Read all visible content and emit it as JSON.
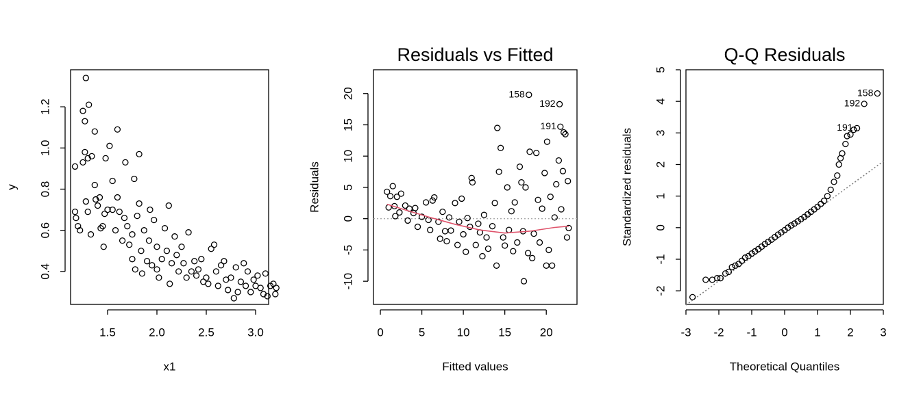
{
  "chart_data": [
    {
      "type": "scatter",
      "xlabel": "x1",
      "ylabel": "y",
      "xlim": [
        1.125,
        3.132
      ],
      "ylim": [
        0.24,
        1.38
      ],
      "xticks": [
        1.5,
        {
          "value": 2,
          "label": "2.0"
        },
        2.5,
        {
          "value": 3,
          "label": "3.0"
        }
      ],
      "yticks": [
        0.4,
        0.6,
        0.8,
        {
          "value": 1,
          "label": "1.0"
        },
        1.2
      ],
      "color": "#000000",
      "x": [
        1.17,
        1.17,
        1.18,
        1.2,
        1.22,
        1.25,
        1.25,
        1.27,
        1.27,
        1.28,
        1.28,
        1.3,
        1.31,
        1.3,
        1.33,
        1.34,
        1.37,
        1.37,
        1.38,
        1.4,
        1.42,
        1.43,
        1.45,
        1.46,
        1.47,
        1.48,
        1.5,
        1.52,
        1.55,
        1.55,
        1.58,
        1.6,
        1.6,
        1.62,
        1.65,
        1.67,
        1.68,
        1.7,
        1.72,
        1.75,
        1.75,
        1.77,
        1.78,
        1.8,
        1.82,
        1.82,
        1.84,
        1.85,
        1.87,
        1.9,
        1.92,
        1.93,
        1.95,
        1.97,
        2.0,
        2.0,
        2.02,
        2.05,
        2.08,
        2.1,
        2.12,
        2.13,
        2.15,
        2.18,
        2.2,
        2.22,
        2.25,
        2.27,
        2.3,
        2.32,
        2.35,
        2.38,
        2.4,
        2.42,
        2.45,
        2.47,
        2.5,
        2.52,
        2.55,
        2.58,
        2.6,
        2.62,
        2.65,
        2.68,
        2.7,
        2.72,
        2.75,
        2.78,
        2.8,
        2.82,
        2.85,
        2.88,
        2.9,
        2.92,
        2.95,
        2.98,
        3.0,
        3.02,
        3.05,
        3.08,
        3.1,
        3.12,
        3.15,
        3.18,
        3.2,
        3.21
      ],
      "y": [
        0.91,
        0.69,
        0.66,
        0.62,
        0.6,
        0.93,
        1.18,
        1.13,
        0.98,
        1.34,
        0.74,
        0.95,
        1.21,
        0.69,
        0.58,
        0.96,
        0.82,
        1.08,
        0.75,
        0.72,
        0.76,
        0.61,
        0.62,
        0.52,
        0.68,
        0.95,
        0.7,
        1.01,
        0.84,
        0.7,
        0.6,
        1.09,
        0.76,
        0.69,
        0.55,
        0.66,
        0.93,
        0.62,
        0.53,
        0.46,
        0.58,
        0.85,
        0.41,
        0.67,
        0.97,
        0.73,
        0.5,
        0.39,
        0.6,
        0.45,
        0.55,
        0.7,
        0.43,
        0.65,
        0.52,
        0.41,
        0.37,
        0.46,
        0.61,
        0.5,
        0.72,
        0.34,
        0.44,
        0.57,
        0.48,
        0.4,
        0.52,
        0.44,
        0.37,
        0.59,
        0.4,
        0.45,
        0.38,
        0.41,
        0.46,
        0.35,
        0.37,
        0.34,
        0.51,
        0.53,
        0.4,
        0.33,
        0.43,
        0.45,
        0.36,
        0.31,
        0.37,
        0.27,
        0.42,
        0.3,
        0.35,
        0.44,
        0.33,
        0.4,
        0.3,
        0.36,
        0.33,
        0.38,
        0.32,
        0.29,
        0.39,
        0.28,
        0.33,
        0.34,
        0.29,
        0.32
      ]
    },
    {
      "type": "scatter",
      "title": "Residuals vs Fitted",
      "xlabel": "Fitted values",
      "ylabel": "Residuals",
      "xlim": [
        -0.83,
        23.7
      ],
      "ylim": [
        -13.7,
        23.8
      ],
      "xticks": [
        0,
        5,
        10,
        15,
        20
      ],
      "yticks": [
        -10,
        -5,
        0,
        5,
        10,
        15,
        20
      ],
      "color": "#000000",
      "x": [
        0.8,
        1.0,
        1.2,
        1.5,
        1.7,
        1.8,
        2.0,
        2.3,
        2.5,
        3.0,
        3.3,
        3.5,
        4.0,
        4.2,
        4.5,
        5.0,
        5.5,
        5.8,
        6.0,
        6.3,
        6.5,
        7.0,
        7.2,
        7.5,
        7.8,
        8.0,
        8.3,
        8.5,
        9.0,
        9.3,
        9.5,
        9.8,
        10.0,
        10.3,
        10.5,
        10.8,
        11.0,
        11.1,
        11.5,
        11.8,
        12.0,
        12.3,
        12.5,
        12.8,
        13.0,
        13.5,
        13.8,
        14.0,
        14.1,
        14.3,
        14.5,
        14.8,
        15.0,
        15.3,
        15.5,
        15.8,
        16.0,
        16.2,
        16.5,
        16.8,
        17.0,
        17.2,
        17.3,
        17.5,
        17.8,
        17.9,
        18.0,
        18.3,
        18.5,
        18.8,
        19.0,
        19.2,
        19.5,
        19.8,
        20.0,
        20.1,
        20.3,
        20.5,
        20.7,
        21.0,
        21.2,
        21.5,
        21.6,
        21.7,
        21.8,
        22.0,
        22.1,
        22.3,
        22.5,
        22.6,
        22.7
      ],
      "y": [
        4.3,
        1.8,
        3.6,
        5.2,
        2.0,
        0.4,
        3.5,
        1.0,
        4.0,
        2.1,
        -0.3,
        1.6,
        0.9,
        1.7,
        -1.3,
        0.3,
        2.6,
        -0.2,
        -1.8,
        2.9,
        3.4,
        -0.5,
        -3.2,
        1.1,
        -2.0,
        -3.6,
        0.2,
        -1.9,
        2.5,
        -4.2,
        -0.5,
        3.2,
        -2.5,
        -5.3,
        0.1,
        -1.3,
        6.5,
        5.8,
        -4.2,
        -0.8,
        -2.2,
        -6.0,
        0.6,
        -3.0,
        -4.8,
        -1.2,
        2.5,
        -7.5,
        14.5,
        7.5,
        11.3,
        -3.0,
        -4.3,
        5.0,
        -1.8,
        1.2,
        -5.2,
        2.6,
        -3.8,
        8.3,
        5.8,
        -2.0,
        -10.0,
        5.0,
        -5.5,
        19.8,
        10.7,
        -6.3,
        -2.4,
        10.5,
        3.0,
        -3.8,
        1.6,
        7.3,
        -7.5,
        12.3,
        -5.0,
        3.5,
        -7.5,
        0.2,
        5.5,
        9.3,
        18.3,
        14.7,
        1.5,
        7.6,
        13.8,
        13.5,
        -3.0,
        6.0,
        -1.5
      ],
      "hline": 0,
      "smooth": {
        "color": "#DF536B",
        "x": [
          0.8,
          3,
          6,
          9,
          12,
          15,
          18,
          21,
          22.7
        ],
        "y": [
          2.3,
          1.4,
          0.2,
          -0.9,
          -1.8,
          -2.3,
          -2.0,
          -1.4,
          -1.2
        ]
      },
      "annotations": [
        {
          "text": "158",
          "x": 17.9,
          "y": 19.8
        },
        {
          "text": "192",
          "x": 21.6,
          "y": 18.3
        },
        {
          "text": "191",
          "x": 21.7,
          "y": 14.7
        }
      ]
    },
    {
      "type": "scatter",
      "title": "Q-Q Residuals",
      "xlabel": "Theoretical Quantiles",
      "ylabel": "Standardized residuals",
      "xlim": [
        -3,
        3
      ],
      "ylim": [
        -2.43,
        5
      ],
      "xticks": [
        -3,
        -2,
        -1,
        0,
        1,
        2,
        3
      ],
      "yticks": [
        -2,
        -1,
        0,
        1,
        2,
        3,
        4,
        5
      ],
      "color": "#000000",
      "x": [
        -2.8,
        -2.4,
        -2.2,
        -2.05,
        -1.95,
        -1.8,
        -1.7,
        -1.6,
        -1.5,
        -1.4,
        -1.3,
        -1.2,
        -1.1,
        -1.0,
        -0.9,
        -0.8,
        -0.7,
        -0.6,
        -0.5,
        -0.4,
        -0.3,
        -0.2,
        -0.1,
        0.0,
        0.1,
        0.2,
        0.3,
        0.4,
        0.5,
        0.6,
        0.7,
        0.8,
        0.9,
        1.0,
        1.1,
        1.2,
        1.3,
        1.4,
        1.5,
        1.6,
        1.65,
        1.7,
        1.75,
        1.85,
        1.9,
        2.0,
        2.1,
        2.2,
        2.42,
        2.82
      ],
      "y": [
        -2.2,
        -1.65,
        -1.65,
        -1.6,
        -1.6,
        -1.45,
        -1.4,
        -1.25,
        -1.2,
        -1.15,
        -1.05,
        -0.95,
        -0.9,
        -0.82,
        -0.75,
        -0.68,
        -0.6,
        -0.52,
        -0.45,
        -0.38,
        -0.3,
        -0.22,
        -0.15,
        -0.08,
        0.0,
        0.07,
        0.13,
        0.2,
        0.27,
        0.34,
        0.42,
        0.5,
        0.58,
        0.66,
        0.75,
        0.85,
        1.0,
        1.2,
        1.45,
        1.65,
        2.0,
        2.2,
        2.35,
        2.65,
        2.9,
        2.95,
        3.1,
        3.15,
        3.92,
        4.25
      ],
      "reference_line": {
        "color": "#808080",
        "x": [
          -3,
          3
        ],
        "y": [
          -2.45,
          2.1
        ]
      },
      "annotations": [
        {
          "text": "191",
          "x": 2.2,
          "y": 3.15
        },
        {
          "text": "192",
          "x": 2.42,
          "y": 3.92
        },
        {
          "text": "158",
          "x": 2.82,
          "y": 4.25
        }
      ]
    }
  ]
}
